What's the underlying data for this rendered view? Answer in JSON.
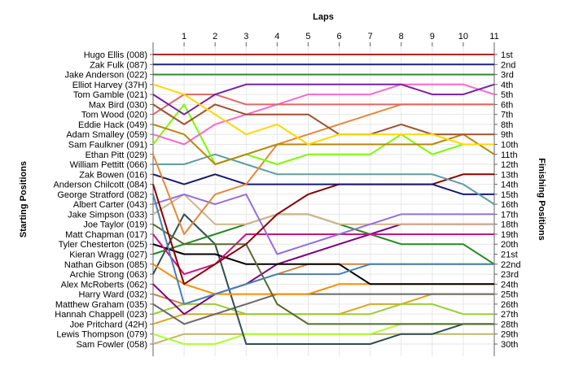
{
  "chart_data": {
    "type": "line",
    "chart_kind": "lap chart (race position per lap)",
    "title": "",
    "xlabel": "Laps",
    "ylabel_left": "Starting Positions",
    "ylabel_right": "Finishing Positions",
    "x_ticks": [
      "1",
      "2",
      "3",
      "4",
      "5",
      "6",
      "7",
      "8",
      "9",
      "10",
      "11"
    ],
    "x_range": [
      0,
      11
    ],
    "y_range": [
      1,
      30
    ],
    "y_inverted": true,
    "grid": true,
    "legend": "none (series named by start-position labels)",
    "left_labels": [
      "Hugo Ellis (008)",
      "Zak Fulk (087)",
      "Jake Anderson (022)",
      "Elliot Harvey (37H)",
      "Tom Gamble (021)",
      "Max Bird (030)",
      "Tom Wood (020)",
      "Eddie Hack (049)",
      "Adam Smalley (059)",
      "Sam Faulkner (091)",
      "Ethan Pitt (029)",
      "William Pettitt (066)",
      "Zak Bowen (016)",
      "Anderson Chilcott (084)",
      "George Stratford (082)",
      "Albert Carter (043)",
      "Jake Simpson (033)",
      "Joe Taylor (019)",
      "Matt Chapman (017)",
      "Tyler Chesterton (025)",
      "Kieran Wragg (027)",
      "Nathan Gibson (085)",
      "Archie Strong (063)",
      "Alex McRoberts (062)",
      "Harry Ward (032)",
      "Matthew Graham (035)",
      "Hannah Chappell (023)",
      "Joe Pritchard (42H)",
      "Lewis Thompson (079)",
      "Sam Fowler (058)"
    ],
    "right_labels": [
      "1st",
      "2nd",
      "3rd",
      "4th",
      "5th",
      "6th",
      "7th",
      "8th",
      "9th",
      "10th",
      "11th",
      "12th",
      "13th",
      "14th",
      "15th",
      "16th",
      "17th",
      "18th",
      "19th",
      "20th",
      "21st",
      "22nd",
      "23rd",
      "24th",
      "25th",
      "26th",
      "27th",
      "28th",
      "29th",
      "30th"
    ],
    "series": [
      {
        "start": 1,
        "color": "#b22222",
        "positions": [
          1,
          1,
          1,
          1,
          1,
          1,
          1,
          1,
          1,
          1,
          1,
          1
        ]
      },
      {
        "start": 2,
        "color": "#1a237e",
        "positions": [
          2,
          2,
          2,
          2,
          2,
          2,
          2,
          2,
          2,
          2,
          2,
          2
        ]
      },
      {
        "start": 3,
        "color": "#2e8b2e",
        "positions": [
          3,
          3,
          3,
          3,
          3,
          3,
          3,
          3,
          3,
          3,
          3,
          3
        ]
      },
      {
        "start": 4,
        "color": "#ffd700",
        "positions": [
          4,
          5,
          7,
          9,
          8,
          10,
          9,
          9,
          9,
          9,
          10,
          10
        ]
      },
      {
        "start": 5,
        "color": "#7b1fa2",
        "positions": [
          5,
          7,
          5,
          4,
          4,
          4,
          4,
          4,
          4,
          5,
          5,
          4
        ]
      },
      {
        "start": 6,
        "color": "#a0522d",
        "positions": [
          6,
          8,
          6,
          7,
          7,
          7,
          9,
          9,
          8,
          9,
          9,
          9
        ]
      },
      {
        "start": 7,
        "color": "#e06666",
        "positions": [
          7,
          5,
          5,
          6,
          6,
          6,
          6,
          6,
          6,
          6,
          6,
          6
        ]
      },
      {
        "start": 8,
        "color": "#b8860b",
        "positions": [
          8,
          9,
          12,
          11,
          10,
          10,
          10,
          10,
          10,
          10,
          9,
          11
        ]
      },
      {
        "start": 9,
        "color": "#ff66cc",
        "positions": [
          9,
          10,
          8,
          7,
          6,
          5,
          5,
          5,
          4,
          4,
          4,
          5
        ]
      },
      {
        "start": 10,
        "color": "#7cfc00",
        "positions": [
          10,
          6,
          12,
          11,
          12,
          11,
          11,
          11,
          9,
          11,
          10,
          10
        ]
      },
      {
        "start": 11,
        "color": "#e8873a",
        "positions": [
          11,
          19,
          15,
          14,
          10,
          9,
          8,
          7,
          6,
          6,
          6,
          6
        ]
      },
      {
        "start": 12,
        "color": "#5f9ea0",
        "positions": [
          12,
          12,
          11,
          12,
          13,
          13,
          13,
          13,
          13,
          13,
          14,
          16
        ]
      },
      {
        "start": 13,
        "color": "#191970",
        "positions": [
          13,
          14,
          13,
          14,
          14,
          14,
          14,
          14,
          14,
          14,
          15,
          15
        ]
      },
      {
        "start": 14,
        "color": "#8b0000",
        "positions": [
          14,
          24,
          22,
          20,
          17,
          15,
          14,
          14,
          14,
          14,
          13,
          13
        ]
      },
      {
        "start": 15,
        "color": "#4682b4",
        "positions": [
          15,
          26,
          25,
          24,
          23,
          23,
          23,
          22,
          22,
          22,
          22,
          22
        ]
      },
      {
        "start": 16,
        "color": "#9370db",
        "positions": [
          16,
          15,
          16,
          15,
          21,
          20,
          19,
          18,
          17,
          17,
          17,
          17
        ]
      },
      {
        "start": 17,
        "color": "#d2b48c",
        "positions": [
          17,
          15,
          18,
          18,
          17,
          17,
          18,
          18,
          18,
          18,
          18,
          18
        ]
      },
      {
        "start": 18,
        "color": "#556b2f",
        "positions": [
          18,
          20,
          20,
          20,
          26,
          28,
          28,
          28,
          28,
          28,
          28,
          28
        ]
      },
      {
        "start": 19,
        "color": "#c71585",
        "positions": [
          19,
          23,
          22,
          19,
          19,
          19,
          19,
          19,
          19,
          19,
          19,
          19
        ]
      },
      {
        "start": 20,
        "color": "#000000",
        "positions": [
          20,
          21,
          21,
          22,
          22,
          22,
          22,
          24,
          24,
          24,
          24,
          24
        ]
      },
      {
        "start": 21,
        "color": "#228b22",
        "positions": [
          21,
          20,
          19,
          18,
          17,
          17,
          18,
          19,
          20,
          20,
          20,
          22
        ]
      },
      {
        "start": 22,
        "color": "#ff8c00",
        "positions": [
          22,
          24,
          25,
          25,
          25,
          25,
          24,
          24,
          24,
          24,
          24,
          24
        ]
      },
      {
        "start": 23,
        "color": "#2f4f4f",
        "positions": [
          23,
          17,
          20,
          30,
          30,
          30,
          30,
          30,
          29,
          29,
          28,
          28
        ]
      },
      {
        "start": 24,
        "color": "#800080",
        "positions": [
          24,
          27,
          25,
          24,
          22,
          21,
          20,
          19,
          18,
          18,
          18,
          18
        ]
      },
      {
        "start": 25,
        "color": "#cd853f",
        "positions": [
          25,
          26,
          25,
          24,
          23,
          22,
          22,
          22,
          22,
          22,
          22,
          22
        ]
      },
      {
        "start": 26,
        "color": "#696969",
        "positions": [
          26,
          28,
          27,
          26,
          25,
          25,
          25,
          25,
          25,
          25,
          25,
          25
        ]
      },
      {
        "start": 27,
        "color": "#9acd32",
        "positions": [
          27,
          26,
          26,
          27,
          27,
          27,
          27,
          27,
          26,
          26,
          27,
          27
        ]
      },
      {
        "start": 28,
        "color": "#daa520",
        "positions": [
          28,
          27,
          27,
          27,
          27,
          27,
          27,
          26,
          26,
          25,
          25,
          25
        ]
      },
      {
        "start": 29,
        "color": "#adff2f",
        "positions": [
          29,
          30,
          30,
          29,
          29,
          29,
          29,
          29,
          28,
          28,
          28,
          28
        ]
      },
      {
        "start": 30,
        "color": "#bdb76b",
        "positions": [
          30,
          29,
          29,
          29,
          29,
          29,
          29,
          29,
          29,
          29,
          29,
          29
        ]
      }
    ]
  }
}
